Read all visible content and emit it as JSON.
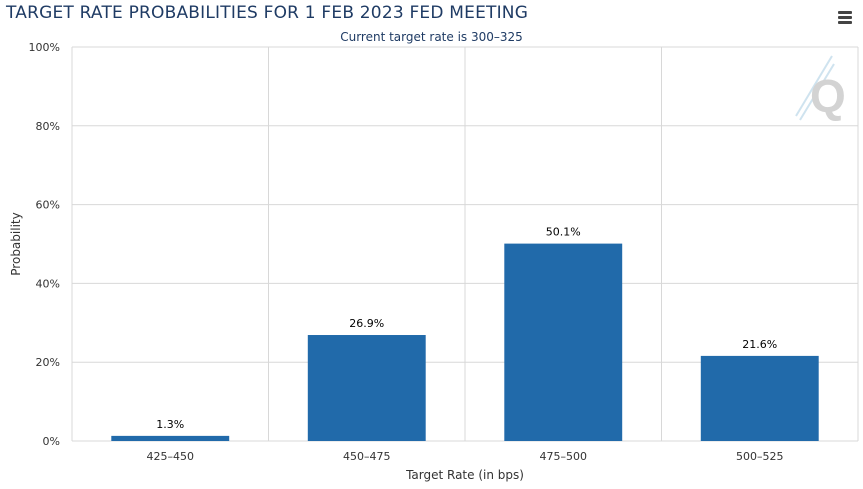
{
  "header": {
    "title": "TARGET RATE PROBABILITIES FOR 1 FEB 2023 FED MEETING",
    "subtitle": "Current target rate is 300–325",
    "menu_icon": "hamburger-menu-icon",
    "watermark_icon": "q-logo-icon"
  },
  "chart_data": {
    "type": "bar",
    "title": "TARGET RATE PROBABILITIES FOR 1 FEB 2023 FED MEETING",
    "subtitle": "Current target rate is 300–325",
    "xlabel": "Target Rate (in bps)",
    "ylabel": "Probability",
    "categories": [
      "425–450",
      "450–475",
      "475–500",
      "500–525"
    ],
    "values": [
      1.3,
      26.9,
      50.1,
      21.6
    ],
    "data_labels": [
      "1.3%",
      "26.9%",
      "50.1%",
      "21.6%"
    ],
    "ylim": [
      0,
      100
    ],
    "yticks": [
      0,
      20,
      40,
      60,
      80,
      100
    ],
    "ytick_labels": [
      "0%",
      "20%",
      "40%",
      "60%",
      "80%",
      "100%"
    ],
    "grid": true,
    "bar_color": "#216aaa",
    "grid_color": "#d8d8d8"
  }
}
